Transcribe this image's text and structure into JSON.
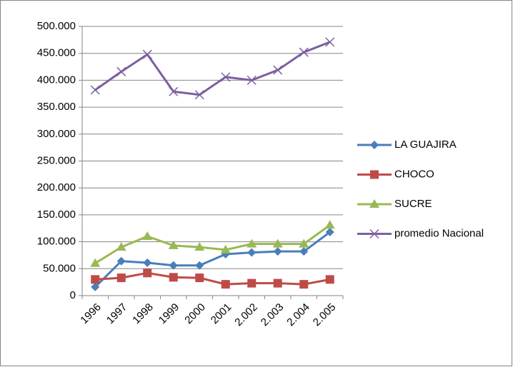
{
  "chart_data": {
    "type": "line",
    "categories": [
      "1996",
      "1997",
      "1998",
      "1999",
      "2000",
      "2001",
      "2.002",
      "2.003",
      "2.004",
      "2.005"
    ],
    "series": [
      {
        "name": "LA GUAJIRA",
        "color": "#4a7ebb",
        "marker": "diamond",
        "values": [
          16000,
          64000,
          61000,
          56000,
          56000,
          77000,
          80000,
          82000,
          82000,
          118000
        ]
      },
      {
        "name": "CHOCO",
        "color": "#be4b48",
        "marker": "square",
        "values": [
          30000,
          33000,
          42000,
          34000,
          33000,
          21000,
          23000,
          23000,
          21000,
          30000
        ]
      },
      {
        "name": "SUCRE",
        "color": "#98b954",
        "marker": "triangle",
        "values": [
          60000,
          90000,
          110000,
          93000,
          90000,
          85000,
          96000,
          96000,
          96000,
          131000
        ]
      },
      {
        "name": "promedio Nacional",
        "color": "#7d5fa0",
        "marker": "x",
        "values": [
          382000,
          416000,
          448000,
          379000,
          373000,
          406000,
          400000,
          419000,
          452000,
          471000
        ]
      }
    ],
    "ylim": [
      0,
      500000
    ],
    "yticks": [
      0,
      {
        "value": 50000,
        "label": "50.000"
      },
      {
        "value": 100000,
        "label": "100.000"
      },
      {
        "value": 150000,
        "label": "150.000"
      },
      {
        "value": 200000,
        "label": "200.000"
      },
      {
        "value": 250000,
        "label": "250.000"
      },
      {
        "value": 300000,
        "label": "300.000"
      },
      {
        "value": 350000,
        "label": "350.000"
      },
      {
        "value": 400000,
        "label": "400.000"
      },
      {
        "value": 450000,
        "label": "450.000"
      },
      {
        "value": 500000,
        "label": "500.000"
      }
    ],
    "grid": true,
    "legend": "right"
  }
}
